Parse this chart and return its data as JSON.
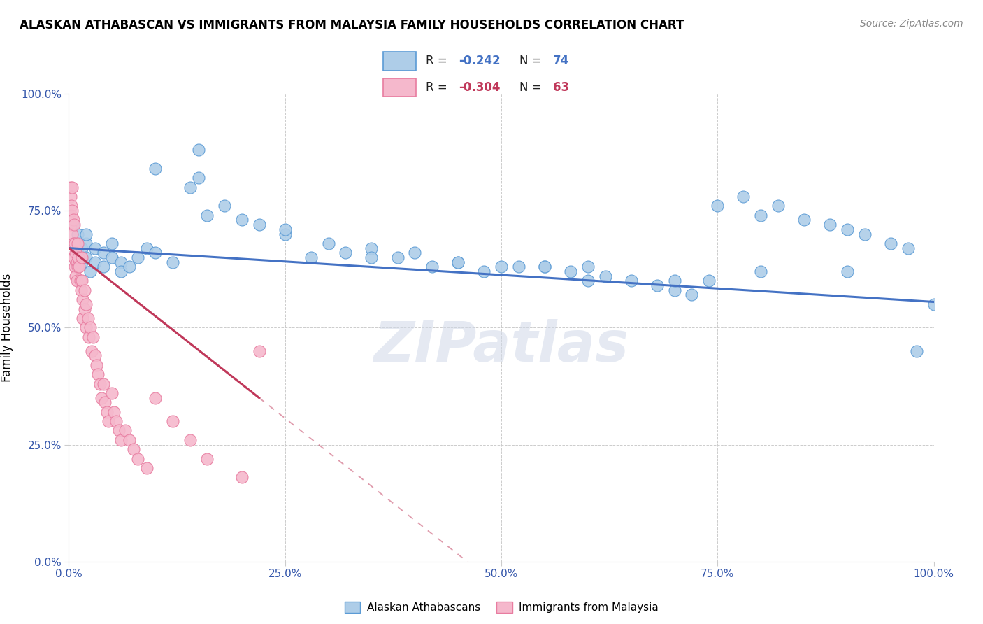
{
  "title": "ALASKAN ATHABASCAN VS IMMIGRANTS FROM MALAYSIA FAMILY HOUSEHOLDS CORRELATION CHART",
  "source": "Source: ZipAtlas.com",
  "ylabel": "Family Households",
  "xlabel": "",
  "blue_label": "Alaskan Athabascans",
  "pink_label": "Immigrants from Malaysia",
  "blue_R": -0.242,
  "blue_N": 74,
  "pink_R": -0.304,
  "pink_N": 63,
  "blue_color": "#aecde8",
  "pink_color": "#f5b8cc",
  "blue_edge_color": "#5b9bd5",
  "pink_edge_color": "#e87ca0",
  "blue_line_color": "#4472c4",
  "pink_line_color": "#c0385a",
  "watermark": "ZIPatlas",
  "xlim": [
    0.0,
    1.0
  ],
  "ylim": [
    0.0,
    1.0
  ],
  "xticks": [
    0.0,
    0.25,
    0.5,
    0.75,
    1.0
  ],
  "yticks": [
    0.0,
    0.25,
    0.5,
    0.75,
    1.0
  ],
  "xtick_labels": [
    "0.0%",
    "25.0%",
    "50.0%",
    "75.0%",
    "100.0%"
  ],
  "ytick_labels": [
    "0.0%",
    "25.0%",
    "50.0%",
    "75.0%",
    "100.0%"
  ],
  "blue_x": [
    0.005,
    0.005,
    0.01,
    0.01,
    0.01,
    0.01,
    0.015,
    0.015,
    0.02,
    0.02,
    0.02,
    0.025,
    0.03,
    0.03,
    0.04,
    0.04,
    0.05,
    0.05,
    0.06,
    0.06,
    0.07,
    0.08,
    0.09,
    0.1,
    0.12,
    0.14,
    0.15,
    0.16,
    0.18,
    0.2,
    0.22,
    0.25,
    0.28,
    0.3,
    0.32,
    0.35,
    0.38,
    0.4,
    0.42,
    0.45,
    0.48,
    0.5,
    0.52,
    0.55,
    0.58,
    0.6,
    0.62,
    0.65,
    0.68,
    0.7,
    0.72,
    0.74,
    0.75,
    0.78,
    0.8,
    0.82,
    0.85,
    0.88,
    0.9,
    0.92,
    0.95,
    0.97,
    0.98,
    1.0,
    0.1,
    0.15,
    0.25,
    0.35,
    0.45,
    0.55,
    0.7,
    0.8,
    0.9,
    0.6
  ],
  "blue_y": [
    0.68,
    0.72,
    0.65,
    0.7,
    0.63,
    0.66,
    0.64,
    0.67,
    0.65,
    0.68,
    0.7,
    0.62,
    0.64,
    0.67,
    0.63,
    0.66,
    0.65,
    0.68,
    0.64,
    0.62,
    0.63,
    0.65,
    0.67,
    0.66,
    0.64,
    0.8,
    0.82,
    0.74,
    0.76,
    0.73,
    0.72,
    0.7,
    0.65,
    0.68,
    0.66,
    0.67,
    0.65,
    0.66,
    0.63,
    0.64,
    0.62,
    0.63,
    0.63,
    0.63,
    0.62,
    0.63,
    0.61,
    0.6,
    0.59,
    0.58,
    0.57,
    0.6,
    0.76,
    0.78,
    0.74,
    0.76,
    0.73,
    0.72,
    0.71,
    0.7,
    0.68,
    0.67,
    0.45,
    0.55,
    0.84,
    0.88,
    0.71,
    0.65,
    0.64,
    0.63,
    0.6,
    0.62,
    0.62,
    0.6
  ],
  "pink_x": [
    0.002,
    0.002,
    0.002,
    0.003,
    0.003,
    0.004,
    0.004,
    0.004,
    0.005,
    0.005,
    0.005,
    0.006,
    0.006,
    0.007,
    0.007,
    0.008,
    0.008,
    0.009,
    0.009,
    0.01,
    0.01,
    0.011,
    0.012,
    0.013,
    0.014,
    0.015,
    0.015,
    0.016,
    0.016,
    0.018,
    0.018,
    0.02,
    0.02,
    0.022,
    0.023,
    0.025,
    0.026,
    0.028,
    0.03,
    0.032,
    0.034,
    0.036,
    0.038,
    0.04,
    0.042,
    0.044,
    0.046,
    0.05,
    0.052,
    0.055,
    0.058,
    0.06,
    0.065,
    0.07,
    0.075,
    0.08,
    0.09,
    0.1,
    0.12,
    0.14,
    0.16,
    0.2,
    0.22
  ],
  "pink_y": [
    0.8,
    0.78,
    0.72,
    0.76,
    0.74,
    0.8,
    0.75,
    0.7,
    0.73,
    0.68,
    0.65,
    0.72,
    0.65,
    0.68,
    0.63,
    0.66,
    0.61,
    0.64,
    0.6,
    0.68,
    0.63,
    0.65,
    0.63,
    0.6,
    0.58,
    0.65,
    0.6,
    0.56,
    0.52,
    0.58,
    0.54,
    0.55,
    0.5,
    0.52,
    0.48,
    0.5,
    0.45,
    0.48,
    0.44,
    0.42,
    0.4,
    0.38,
    0.35,
    0.38,
    0.34,
    0.32,
    0.3,
    0.36,
    0.32,
    0.3,
    0.28,
    0.26,
    0.28,
    0.26,
    0.24,
    0.22,
    0.2,
    0.35,
    0.3,
    0.26,
    0.22,
    0.18,
    0.45
  ]
}
